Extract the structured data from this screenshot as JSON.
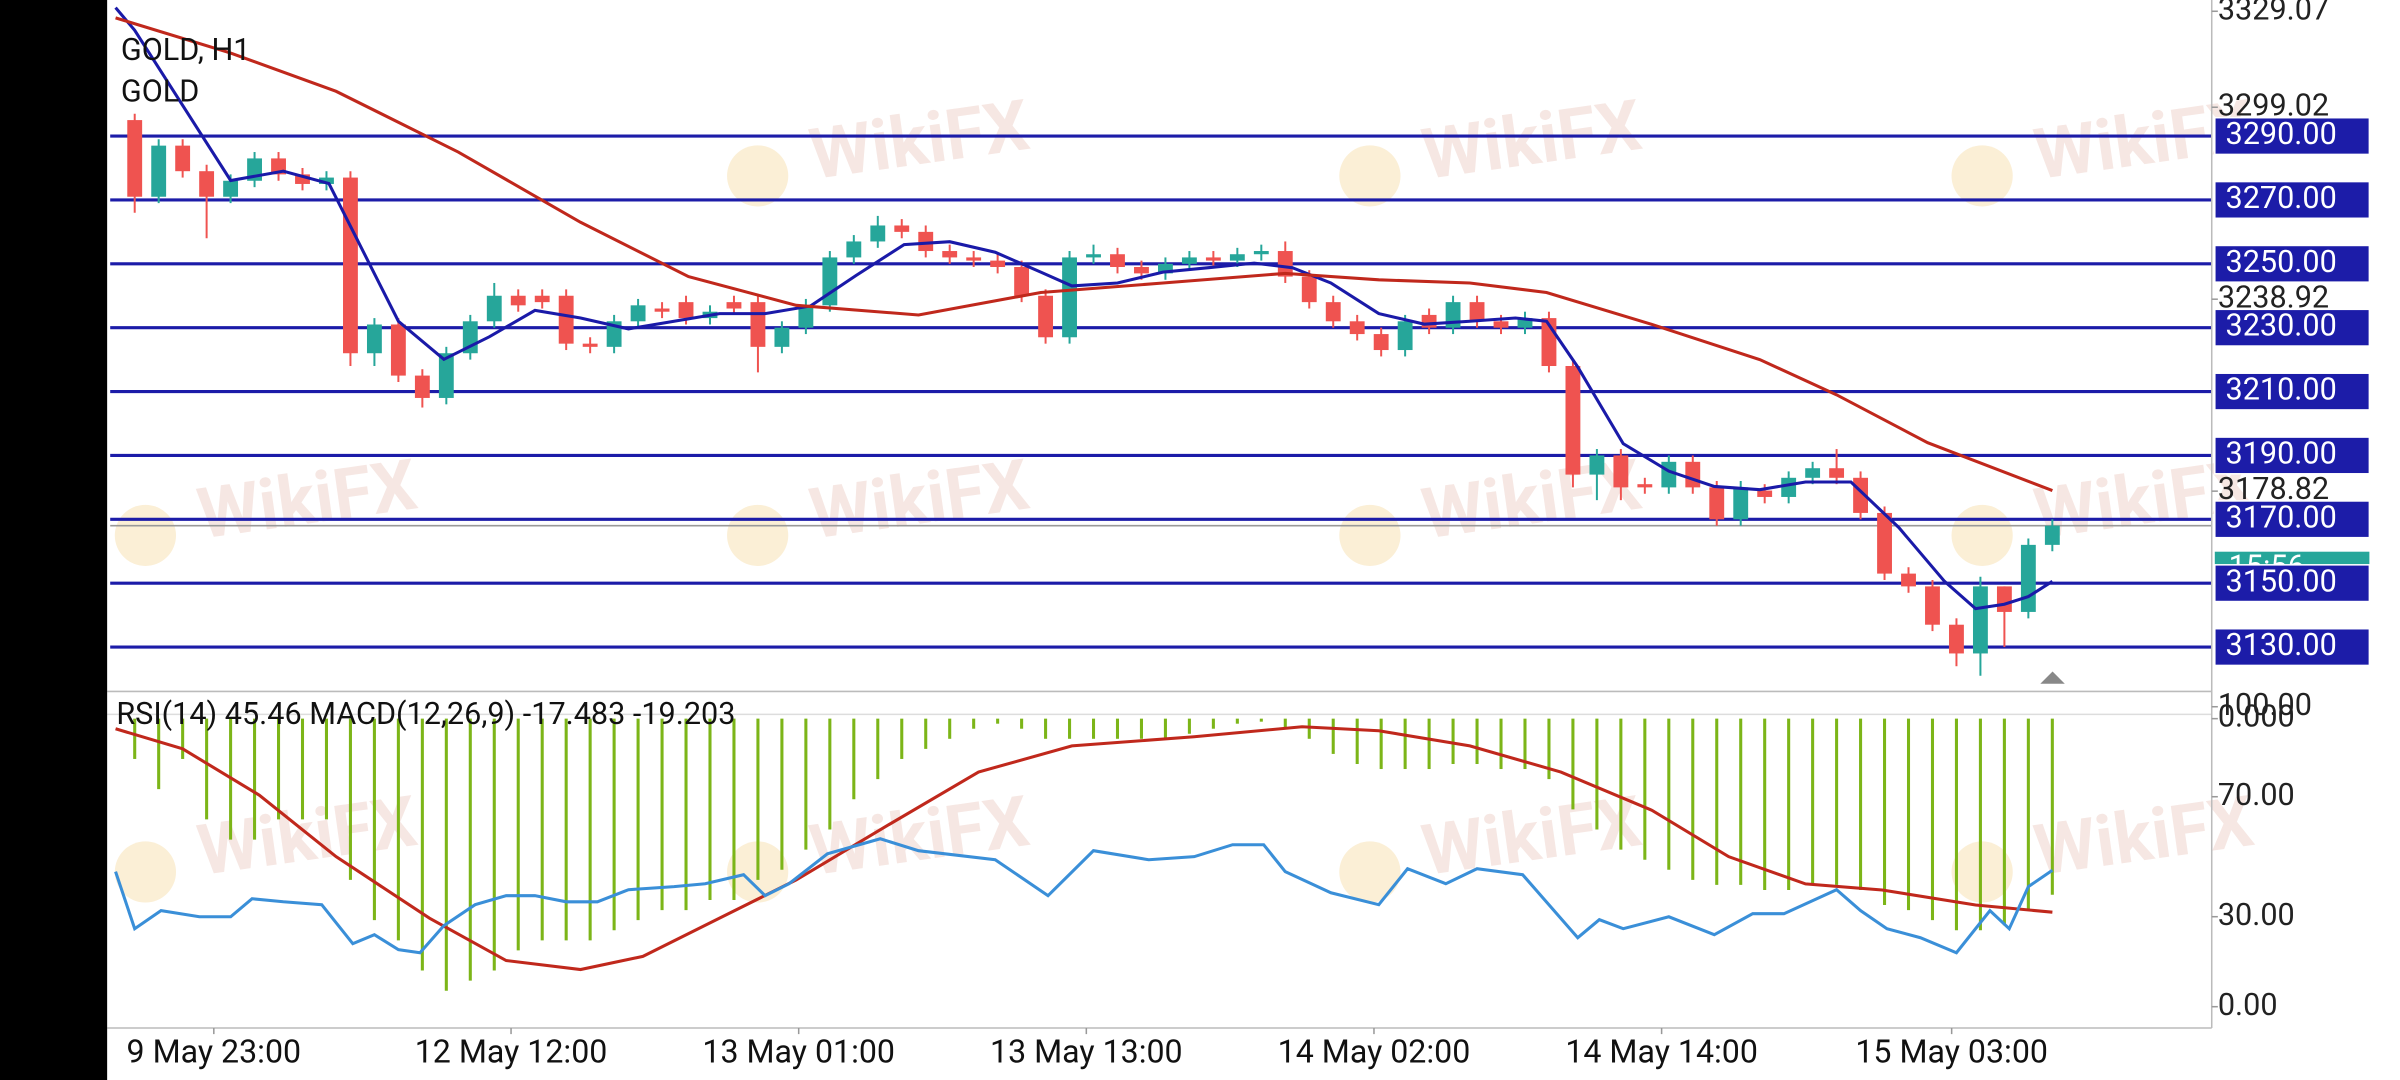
{
  "chart_data": [
    {
      "type": "candlestick",
      "title": "GOLD, H1",
      "subtitle": "GOLD",
      "watermark": "WikiFX",
      "up_color": "#26a69a",
      "down_color": "#ef5350",
      "level_color": "#1c1ca8",
      "countdown": "15:56",
      "countdown_color": "#26a69a",
      "open": [
        3295,
        3271,
        3287,
        3279,
        3271,
        3276,
        3283,
        3278,
        3275,
        3277,
        3222,
        3231,
        3215,
        3208,
        3222,
        3232,
        3240,
        3240,
        3240,
        3225,
        3224,
        3232,
        3236,
        3238,
        3233,
        3238,
        3238,
        3224,
        3230,
        3237,
        3252,
        3257,
        3262,
        3260,
        3254,
        3252,
        3251,
        3249,
        3240,
        3227,
        3252,
        3253,
        3249,
        3247,
        3250,
        3252,
        3251,
        3253,
        3254,
        3246,
        3238,
        3232,
        3228,
        3223,
        3234,
        3230,
        3238,
        3232,
        3230,
        3233,
        3218,
        3184,
        3190,
        3181,
        3180,
        3188,
        3180,
        3170,
        3179,
        3177,
        3183,
        3186,
        3183,
        3172,
        3153,
        3149,
        3137,
        3128,
        3149,
        3141,
        3162
      ],
      "high": [
        3297,
        3289,
        3289,
        3281,
        3278,
        3285,
        3285,
        3280,
        3279,
        3279,
        3233,
        3233,
        3217,
        3224,
        3234,
        3244,
        3242,
        3242,
        3242,
        3227,
        3234,
        3239,
        3238,
        3240,
        3237,
        3240,
        3240,
        3232,
        3239,
        3254,
        3259,
        3265,
        3264,
        3262,
        3256,
        3254,
        3253,
        3251,
        3242,
        3254,
        3256,
        3255,
        3251,
        3252,
        3254,
        3254,
        3255,
        3256,
        3257,
        3248,
        3240,
        3234,
        3230,
        3234,
        3236,
        3240,
        3240,
        3234,
        3235,
        3235,
        3220,
        3192,
        3192,
        3183,
        3190,
        3190,
        3182,
        3182,
        3181,
        3185,
        3188,
        3192,
        3185,
        3174,
        3155,
        3151,
        3139,
        3152,
        3149,
        3164,
        3170
      ],
      "low": [
        3266,
        3269,
        3277,
        3258,
        3269,
        3274,
        3276,
        3273,
        3273,
        3218,
        3218,
        3213,
        3205,
        3206,
        3220,
        3230,
        3235,
        3236,
        3223,
        3222,
        3222,
        3230,
        3233,
        3231,
        3231,
        3234,
        3216,
        3222,
        3228,
        3235,
        3250,
        3255,
        3258,
        3252,
        3250,
        3249,
        3247,
        3238,
        3225,
        3225,
        3250,
        3247,
        3245,
        3245,
        3248,
        3249,
        3249,
        3251,
        3244,
        3236,
        3230,
        3226,
        3221,
        3221,
        3228,
        3228,
        3230,
        3228,
        3228,
        3216,
        3180,
        3176,
        3176,
        3178,
        3178,
        3178,
        3168,
        3168,
        3175,
        3175,
        3181,
        3181,
        3170,
        3151,
        3147,
        3135,
        3124,
        3121,
        3130,
        3139,
        3160
      ],
      "close": [
        3271,
        3287,
        3279,
        3271,
        3276,
        3283,
        3278,
        3275,
        3277,
        3222,
        3231,
        3215,
        3208,
        3222,
        3232,
        3240,
        3237,
        3238,
        3225,
        3224,
        3232,
        3237,
        3235,
        3233,
        3235,
        3236,
        3224,
        3230,
        3237,
        3252,
        3257,
        3262,
        3260,
        3254,
        3252,
        3251,
        3249,
        3240,
        3227,
        3252,
        3253,
        3249,
        3247,
        3250,
        3252,
        3251,
        3253,
        3254,
        3246,
        3238,
        3232,
        3228,
        3223,
        3232,
        3230,
        3238,
        3232,
        3230,
        3233,
        3218,
        3184,
        3190,
        3180,
        3180,
        3188,
        3180,
        3170,
        3180,
        3177,
        3183,
        3186,
        3183,
        3172,
        3153,
        3149,
        3137,
        3128,
        3149,
        3141,
        3162,
        3168
      ],
      "indicators": [
        {
          "color": "#1a1aa8",
          "x": [
            -0.8,
            0,
            4.0,
            6.2,
            8.1,
            11.0,
            12.9,
            14.8,
            16.7,
            18.6,
            20.6,
            22.5,
            24.4,
            26.3,
            28.2,
            30.1,
            32.1,
            34.0,
            35.9,
            37.8,
            39.1,
            41.0,
            42.9,
            44.8,
            46.7,
            48.3,
            49.9,
            51.9,
            53.8,
            55.7,
            57.6,
            58.9,
            60.2,
            62.1,
            64.0,
            65.9,
            67.8,
            69.7,
            71.6,
            73.6,
            75.5,
            76.8,
            78.0,
            79.0,
            80.0
          ],
          "values": [
            3330.2,
            3323.1,
            3276.1,
            3279.0,
            3275.1,
            3232.0,
            3220.1,
            3227.2,
            3235.4,
            3233.0,
            3229.6,
            3232.0,
            3234.4,
            3234.4,
            3236.8,
            3246.4,
            3256.0,
            3256.9,
            3253.6,
            3247.4,
            3243.1,
            3244.0,
            3247.4,
            3248.8,
            3250.2,
            3248.8,
            3244.0,
            3234.4,
            3231.1,
            3232.0,
            3233.0,
            3232.0,
            3217.7,
            3193.7,
            3185.1,
            3180.3,
            3179.3,
            3181.7,
            3181.7,
            3167.4,
            3150.6,
            3142.0,
            3143.4,
            3145.8,
            3150.6
          ]
        },
        {
          "color": "#c0281c",
          "x": [
            -0.8,
            4.0,
            8.4,
            13.5,
            18.6,
            23.1,
            27.6,
            32.7,
            37.8,
            42.9,
            48.0,
            51.9,
            55.7,
            58.9,
            63.3,
            67.8,
            71.0,
            74.8,
            80.0
          ],
          "values": [
            3327,
            3316,
            3304,
            3285,
            3263,
            3246,
            3237,
            3234,
            3241,
            3244,
            3247,
            3245,
            3244,
            3241,
            3231,
            3220,
            3209,
            3194,
            3179
          ]
        }
      ],
      "xlim": [
        -1.15,
        86.65
      ],
      "xticks": [
        {
          "value": 3.3,
          "label": "9 May 23:00"
        },
        {
          "value": 15.7,
          "label": "12 May 12:00"
        },
        {
          "value": 27.7,
          "label": "13 May 01:00"
        },
        {
          "value": 39.7,
          "label": "13 May 13:00"
        },
        {
          "value": 51.7,
          "label": "14 May 02:00"
        },
        {
          "value": 63.7,
          "label": "14 May 14:00"
        },
        {
          "value": 75.8,
          "label": "15 May 03:00"
        }
      ],
      "ylim": [
        3118.5,
        3332.6
      ],
      "yticks": [
        3329.07,
        3299.02,
        3238.92,
        3178.82
      ],
      "levels": [
        {
          "value": 3290,
          "label": "3290.00"
        },
        {
          "value": 3270,
          "label": "3270.00"
        },
        {
          "value": 3250,
          "label": "3250.00"
        },
        {
          "value": 3230,
          "label": "3230.00"
        },
        {
          "value": 3210,
          "label": "3210.00"
        },
        {
          "value": 3190,
          "label": "3190.00"
        },
        {
          "value": 3170,
          "label": "3170.00"
        },
        {
          "value": 3150,
          "label": "3150.00"
        },
        {
          "value": 3130,
          "label": "3130.00"
        }
      ]
    },
    {
      "type": "oscillator",
      "title": "RSI(14) 45.46 MACD(12,26,9) -17.483 -19.203",
      "xlim": [
        -1.15,
        86.65
      ],
      "ylim": [
        -7.1,
        105.1
      ],
      "yticks": [
        {
          "value": 100,
          "label": "100.00"
        },
        {
          "value": 70,
          "label": "70.00"
        },
        {
          "value": 30,
          "label": "30.00"
        },
        {
          "value": 0,
          "label": "0.00"
        }
      ],
      "y2lim": [
        -30.7,
        2.7
      ],
      "y2ticks": [
        {
          "value": 0,
          "label": "0.000"
        }
      ],
      "rsi": {
        "color": "#3a8fd8",
        "x": [
          -0.8,
          0,
          1.1,
          2.7,
          4.0,
          4.9,
          6.2,
          7.8,
          9.1,
          10.0,
          11.0,
          11.9,
          12.9,
          14.2,
          15.5,
          16.7,
          18.0,
          19.3,
          20.6,
          22.5,
          23.8,
          25.4,
          26.3,
          27.3,
          28.9,
          31.1,
          32.7,
          35.9,
          38.1,
          40.0,
          42.3,
          44.2,
          45.8,
          47.1,
          48.0,
          49.9,
          51.9,
          53.1,
          54.7,
          56.0,
          57.9,
          60.2,
          61.1,
          62.1,
          64.0,
          65.9,
          67.5,
          68.8,
          71.0,
          72.0,
          73.1,
          74.5,
          76.0,
          77.4,
          78.2,
          79.0,
          80.0
        ],
        "values": [
          45,
          26,
          32,
          30,
          30,
          36,
          35,
          34,
          21,
          24,
          19,
          18,
          27,
          34,
          37,
          37,
          35,
          35,
          39,
          40,
          41,
          44,
          37,
          41,
          51,
          56,
          52,
          49,
          37,
          52,
          49,
          50,
          54,
          54,
          45,
          38,
          34,
          46,
          41,
          46,
          44,
          23,
          29,
          26,
          30,
          24,
          31,
          31,
          39,
          32,
          26,
          23,
          18,
          32,
          26,
          40,
          45.46
        ]
      },
      "macd": {
        "color": "#7cb518",
        "values": [
          -4,
          -7,
          -4,
          -10,
          -12,
          -12,
          -10,
          -10,
          -10,
          -16,
          -20,
          -22,
          -25,
          -27,
          -26,
          -25,
          -23,
          -22,
          -22,
          -22,
          -21,
          -20,
          -19,
          -19,
          -18,
          -18,
          -16,
          -15,
          -13,
          -11,
          -8,
          -6,
          -4,
          -3,
          -2,
          -1,
          -0.5,
          -1,
          -2,
          -2,
          -2,
          -2,
          -2,
          -2,
          -1.5,
          -1,
          -0.5,
          -0.3,
          -1,
          -2,
          -3.5,
          -4.5,
          -5,
          -5,
          -5,
          -4.5,
          -4.5,
          -5,
          -5,
          -6,
          -9,
          -11,
          -13,
          -14,
          -15,
          -16,
          -16.5,
          -16.5,
          -17,
          -17,
          -16.5,
          -16.5,
          -17,
          -18.5,
          -19,
          -20,
          -21,
          -21,
          -20.5,
          -19,
          -17.483
        ]
      },
      "signal": {
        "color": "#c0281c",
        "x": [
          -0.8,
          2.0,
          5.2,
          8.4,
          12.3,
          15.5,
          18.6,
          21.2,
          24.4,
          27.6,
          31.4,
          35.2,
          39.1,
          44.2,
          48.7,
          51.9,
          55.7,
          59.5,
          63.3,
          66.5,
          69.7,
          72.9,
          76.8,
          80.0
        ],
        "values": [
          -1,
          -3,
          -7.6,
          -13.7,
          -19.8,
          -24,
          -24.9,
          -23.6,
          -19.8,
          -16,
          -10.6,
          -5.3,
          -2.7,
          -1.8,
          -0.8,
          -1.2,
          -2.7,
          -5.3,
          -9.1,
          -13.7,
          -16.4,
          -17,
          -18.5,
          -19.203
        ]
      }
    }
  ]
}
